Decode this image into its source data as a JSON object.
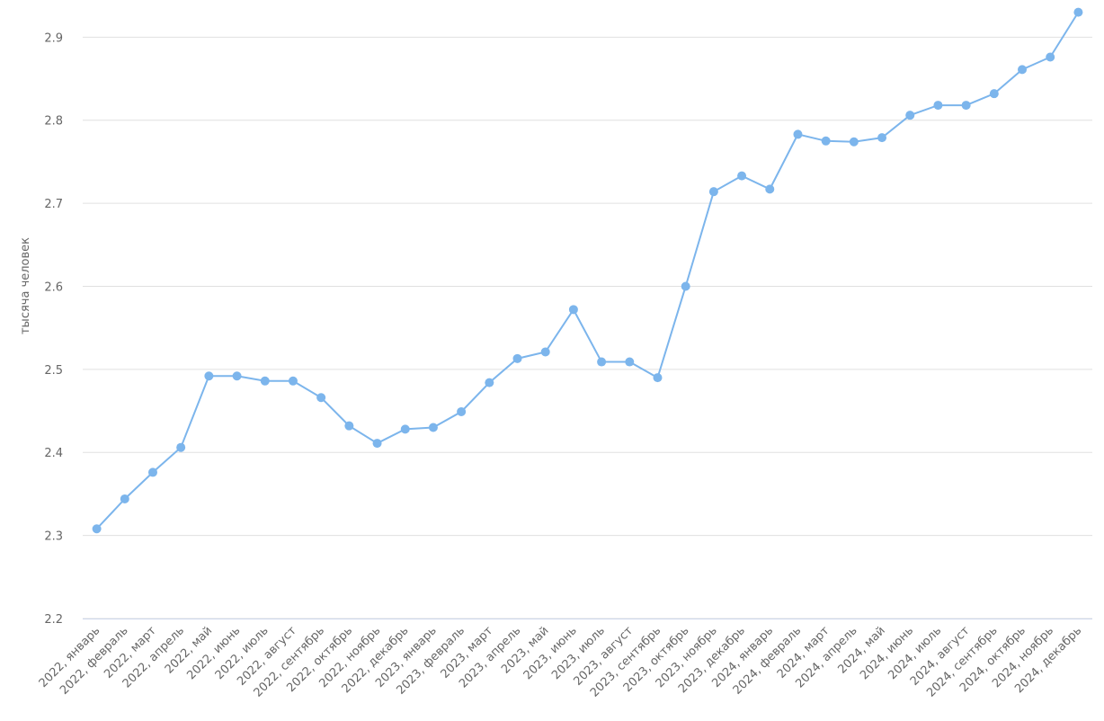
{
  "chart_data": {
    "type": "line",
    "y_label": "тысяча человек",
    "categories": [
      "2022, январь",
      "2022, февраль",
      "2022, март",
      "2022, апрель",
      "2022, май",
      "2022, июнь",
      "2022, июль",
      "2022, август",
      "2022, сентябрь",
      "2022, октябрь",
      "2022, ноябрь",
      "2022, декабрь",
      "2023, январь",
      "2023, февраль",
      "2023, март",
      "2023, апрель",
      "2023, май",
      "2023, июнь",
      "2023, июль",
      "2023, август",
      "2023, сентябрь",
      "2023, октябрь",
      "2023, ноябрь",
      "2023, декабрь",
      "2024, январь",
      "2024, февраль",
      "2024, март",
      "2024, апрель",
      "2024, май",
      "2024, июнь",
      "2024, июль",
      "2024, август",
      "2024, сентябрь",
      "2024, октябрь",
      "2024, ноябрь",
      "2024, декабрь"
    ],
    "values": [
      2.308,
      2.344,
      2.376,
      2.406,
      2.492,
      2.492,
      2.486,
      2.486,
      2.466,
      2.432,
      2.411,
      2.428,
      2.43,
      2.449,
      2.484,
      2.513,
      2.521,
      2.572,
      2.509,
      2.509,
      2.49,
      2.6,
      2.714,
      2.733,
      2.717,
      2.783,
      2.775,
      2.774,
      2.779,
      2.806,
      2.818,
      2.818,
      2.832,
      2.861,
      2.876,
      2.93
    ],
    "color": "#7cb5ec",
    "ylim": [
      2.2,
      2.935
    ],
    "yticks": [
      2.2,
      2.3,
      2.4,
      2.5,
      2.6,
      2.7,
      2.8,
      2.9
    ],
    "grid": true
  }
}
